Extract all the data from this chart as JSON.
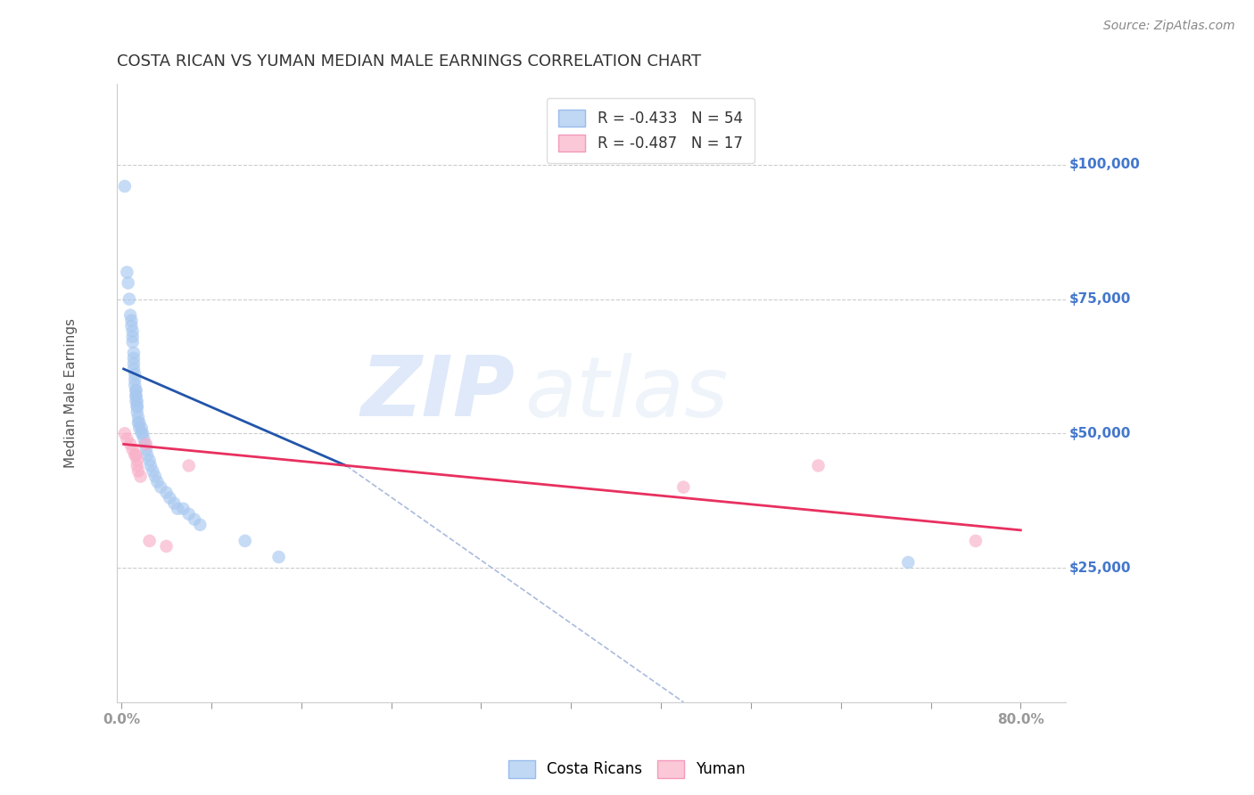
{
  "title": "COSTA RICAN VS YUMAN MEDIAN MALE EARNINGS CORRELATION CHART",
  "source": "Source: ZipAtlas.com",
  "ylabel": "Median Male Earnings",
  "ytick_labels": [
    "$25,000",
    "$50,000",
    "$75,000",
    "$100,000"
  ],
  "ytick_values": [
    25000,
    50000,
    75000,
    100000
  ],
  "ylim": [
    0,
    115000
  ],
  "xlim": [
    -0.004,
    0.84
  ],
  "legend_entries": [
    {
      "label": "R = -0.433   N = 54",
      "color": "#a8c8f0"
    },
    {
      "label": "R = -0.487   N = 17",
      "color": "#f8b8cc"
    }
  ],
  "costa_rican_scatter": {
    "x": [
      0.003,
      0.005,
      0.006,
      0.007,
      0.008,
      0.009,
      0.009,
      0.01,
      0.01,
      0.01,
      0.011,
      0.011,
      0.011,
      0.011,
      0.012,
      0.012,
      0.012,
      0.013,
      0.013,
      0.013,
      0.013,
      0.013,
      0.014,
      0.014,
      0.014,
      0.014,
      0.015,
      0.015,
      0.016,
      0.016,
      0.018,
      0.018,
      0.019,
      0.02,
      0.021,
      0.022,
      0.023,
      0.025,
      0.026,
      0.028,
      0.03,
      0.032,
      0.035,
      0.04,
      0.043,
      0.047,
      0.05,
      0.055,
      0.06,
      0.065,
      0.07,
      0.11,
      0.14,
      0.7
    ],
    "y": [
      96000,
      80000,
      78000,
      75000,
      72000,
      71000,
      70000,
      69000,
      68000,
      67000,
      65000,
      64000,
      63000,
      62000,
      61000,
      60000,
      59000,
      58000,
      58000,
      57000,
      57000,
      56000,
      56000,
      55000,
      55000,
      54000,
      53000,
      52000,
      52000,
      51000,
      51000,
      50000,
      50000,
      49000,
      48000,
      47000,
      46000,
      45000,
      44000,
      43000,
      42000,
      41000,
      40000,
      39000,
      38000,
      37000,
      36000,
      36000,
      35000,
      34000,
      33000,
      30000,
      27000,
      26000
    ],
    "color": "#a8c8f0",
    "alpha": 0.65,
    "size": 110
  },
  "yuman_scatter": {
    "x": [
      0.003,
      0.005,
      0.008,
      0.01,
      0.012,
      0.013,
      0.014,
      0.014,
      0.015,
      0.017,
      0.022,
      0.025,
      0.04,
      0.06,
      0.5,
      0.62,
      0.76
    ],
    "y": [
      50000,
      49000,
      48000,
      47000,
      46000,
      46000,
      45000,
      44000,
      43000,
      42000,
      48000,
      30000,
      29000,
      44000,
      40000,
      44000,
      30000
    ],
    "color": "#f8b0c8",
    "alpha": 0.65,
    "size": 110
  },
  "blue_line": {
    "x": [
      0.002,
      0.2
    ],
    "y": [
      62000,
      44000
    ],
    "color": "#2255aa",
    "linewidth": 2.0
  },
  "pink_line": {
    "x": [
      0.002,
      0.8
    ],
    "y": [
      48000,
      32000
    ],
    "color": "#e83060",
    "linewidth": 2.0
  },
  "dashed_line": {
    "x": [
      0.2,
      0.5
    ],
    "y": [
      44000,
      0
    ],
    "color": "#aabbdd",
    "linewidth": 1.2,
    "linestyle": "--"
  },
  "watermark_zip": "ZIP",
  "watermark_atlas": "atlas",
  "background_color": "#ffffff",
  "grid_color": "#cccccc",
  "axis_color": "#cccccc",
  "title_color": "#333333",
  "label_color": "#4477cc",
  "title_fontsize": 13,
  "source_fontsize": 10,
  "ylabel_fontsize": 11,
  "ytick_fontsize": 11,
  "legend_fontsize": 12
}
